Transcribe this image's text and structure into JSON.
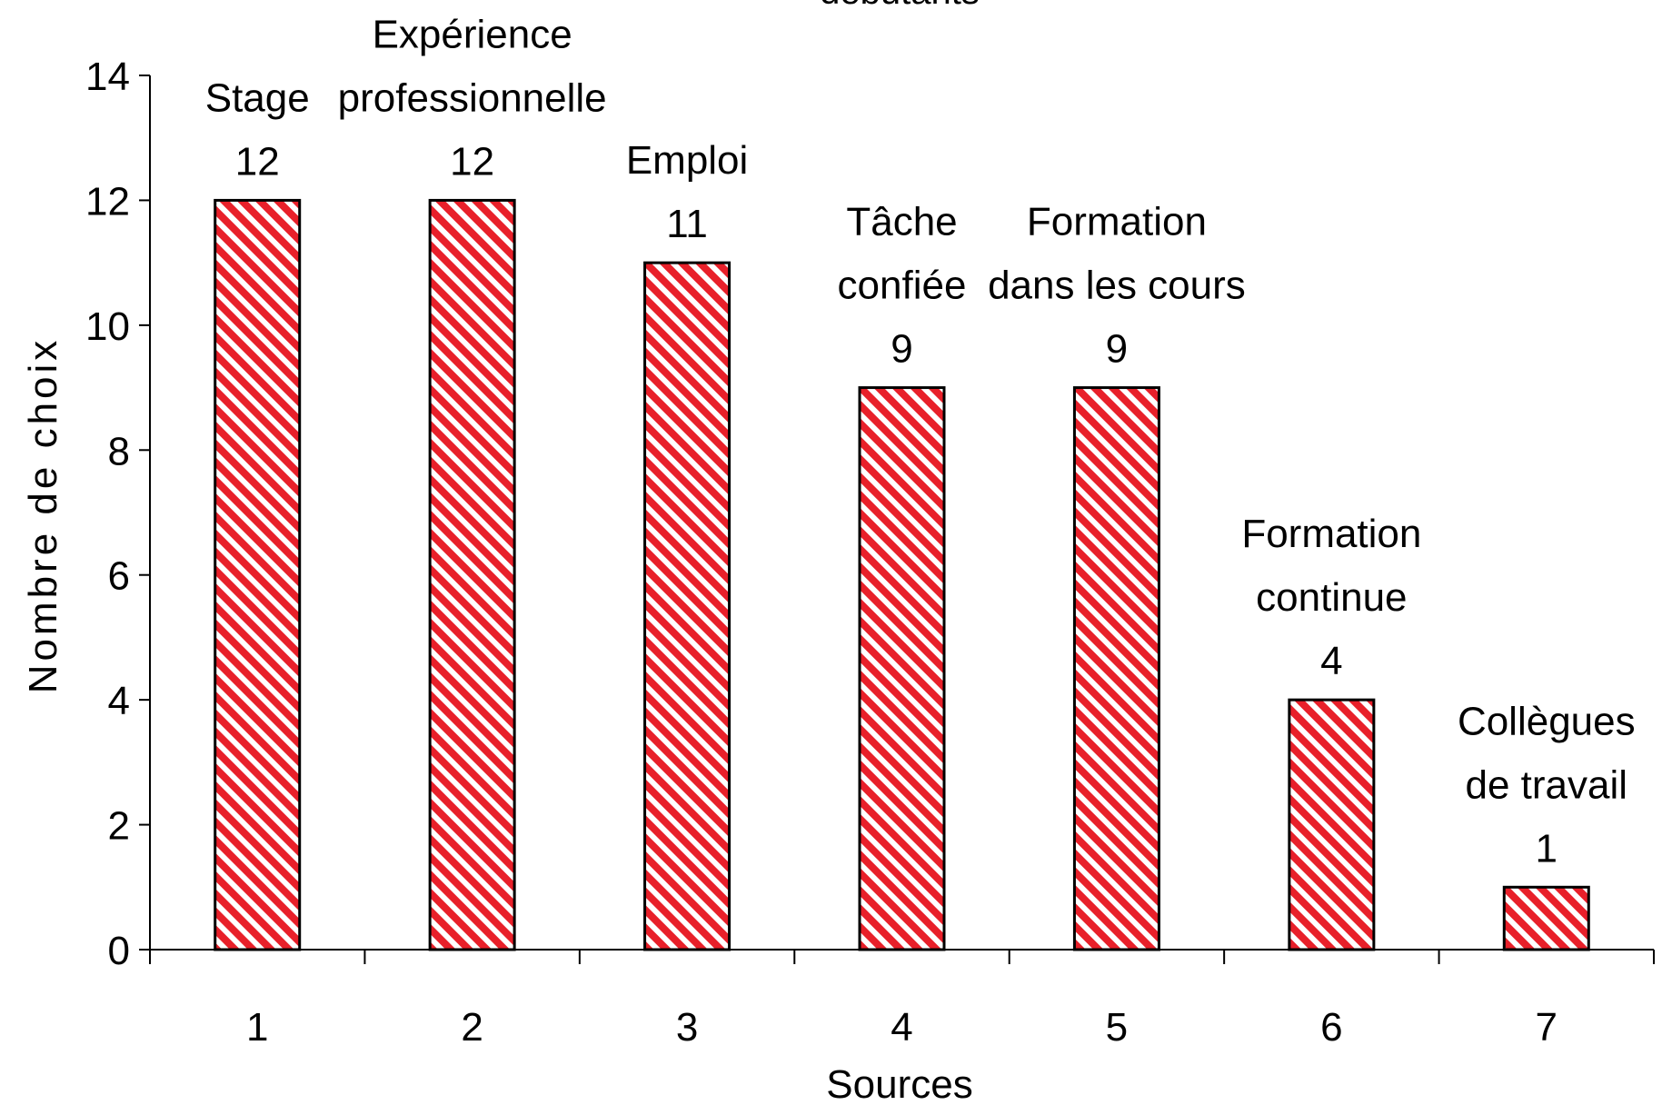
{
  "chart_data": {
    "type": "bar",
    "title_fragment": "débutants",
    "xlabel": "Sources",
    "ylabel": "Nombre de choix",
    "ylim": [
      0,
      14
    ],
    "y_ticks": [
      "0",
      "2",
      "4",
      "6",
      "8",
      "10",
      "12",
      "14"
    ],
    "categories": [
      "1",
      "2",
      "3",
      "4",
      "5",
      "6",
      "7"
    ],
    "values": [
      12,
      12,
      11,
      9,
      9,
      4,
      1
    ],
    "value_labels": [
      "12",
      "12",
      "11",
      "9",
      "9",
      "4",
      "1"
    ],
    "bar_labels": [
      [
        "Stage"
      ],
      [
        "Expérience",
        "professionnelle"
      ],
      [
        "Emploi"
      ],
      [
        "Tâche",
        "confiée"
      ],
      [
        "Formation",
        "dans les cours"
      ],
      [
        "Formation",
        "continue"
      ],
      [
        "Collègues",
        "de travail"
      ]
    ],
    "bar_fill": "#e8202a",
    "bar_stripe_bg": "#ffffff",
    "bar_outline": "#000000",
    "grid": false,
    "legend": "none"
  }
}
